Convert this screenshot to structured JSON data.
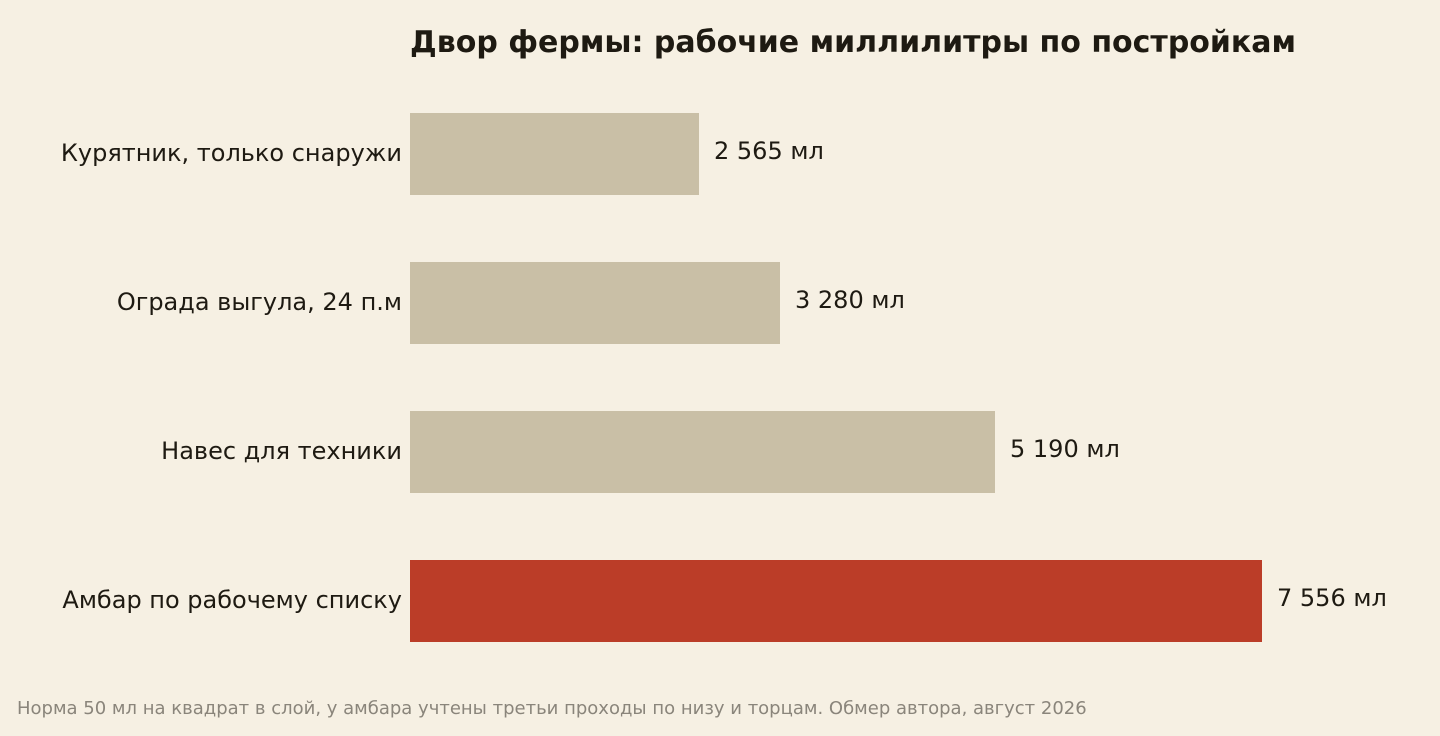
{
  "chart_data": {
    "type": "bar",
    "orientation": "horizontal",
    "title": "Двор фермы: рабочие миллилитры по постройкам",
    "categories": [
      "Курятник, только снаружи",
      "Ограда выгула, 24 п.м",
      "Навес для техники",
      "Амбар по рабочему списку"
    ],
    "values": [
      2565,
      3280,
      5190,
      7556
    ],
    "value_labels": [
      "2 565 мл",
      "3 280 мл",
      "5 190 мл",
      "7 556 мл"
    ],
    "unit": "мл",
    "xlim": [
      0,
      7556
    ],
    "grid": false,
    "legend": "none",
    "highlight_index": 3,
    "colors": {
      "bar": "#c9bfa6",
      "highlight": "#bb3d28",
      "text": "#1e1a12",
      "footnote": "#8a857b",
      "background": "#f6f0e3"
    },
    "footnote": "Норма 50 мл на квадрат в слой, у амбара учтены третьи проходы по низу и торцам. Обмер автора, август 2026"
  }
}
